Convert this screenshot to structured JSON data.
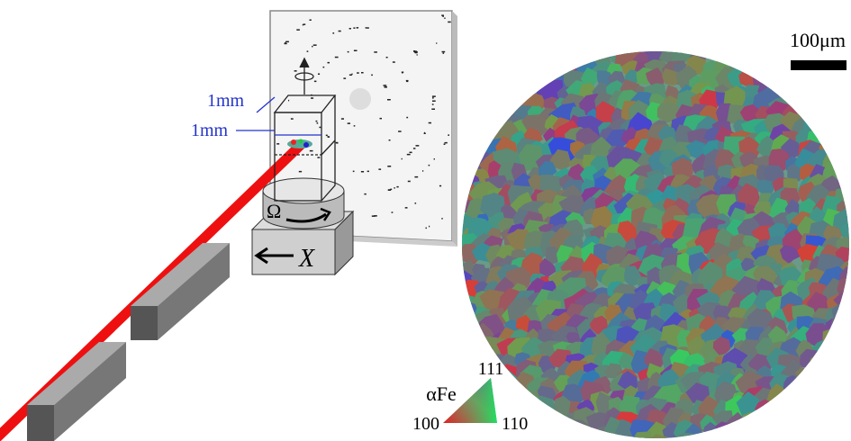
{
  "labels": {
    "beam_width": "1mm",
    "beam_height": "1mm",
    "rotation": "Ω",
    "translation": "X",
    "scale_bar": "100μm",
    "phase": "αFe",
    "pole_111": "111",
    "pole_100": "100",
    "pole_110": "110"
  }
}
